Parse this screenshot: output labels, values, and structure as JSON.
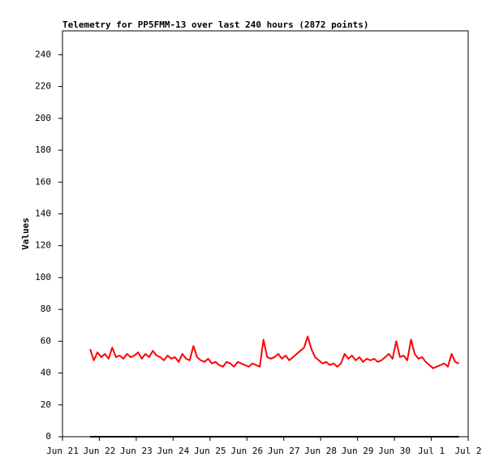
{
  "chart_data": {
    "type": "line",
    "title": "Telemetry for PP5FMM-13 over last 240 hours (2872 points)",
    "y_label": "Values",
    "xlim": [
      0,
      11
    ],
    "xticks": [
      {
        "value": 0,
        "label": "Jun 21"
      },
      {
        "value": 1,
        "label": "Jun 22"
      },
      {
        "value": 2,
        "label": "Jun 23"
      },
      {
        "value": 3,
        "label": "Jun 24"
      },
      {
        "value": 4,
        "label": "Jun 25"
      },
      {
        "value": 5,
        "label": "Jun 26"
      },
      {
        "value": 6,
        "label": "Jun 27"
      },
      {
        "value": 7,
        "label": "Jun 28"
      },
      {
        "value": 8,
        "label": "Jun 29"
      },
      {
        "value": 9,
        "label": "Jun 30"
      },
      {
        "value": 10,
        "label": "Jul 1"
      },
      {
        "value": 11,
        "label": "Jul 2"
      }
    ],
    "ylim": [
      0,
      255
    ],
    "yticks": [
      0,
      20,
      40,
      60,
      80,
      100,
      120,
      140,
      160,
      180,
      200,
      220,
      240
    ],
    "series": [
      {
        "color": "#ff0000",
        "x": [
          0.75,
          0.85,
          0.95,
          1.05,
          1.15,
          1.25,
          1.35,
          1.45,
          1.55,
          1.65,
          1.75,
          1.85,
          1.95,
          2.05,
          2.15,
          2.25,
          2.35,
          2.45,
          2.55,
          2.65,
          2.75,
          2.85,
          2.95,
          3.05,
          3.15,
          3.25,
          3.35,
          3.45,
          3.55,
          3.65,
          3.75,
          3.85,
          3.95,
          4.05,
          4.15,
          4.25,
          4.35,
          4.45,
          4.55,
          4.65,
          4.75,
          4.85,
          4.95,
          5.05,
          5.15,
          5.25,
          5.35,
          5.45,
          5.55,
          5.65,
          5.75,
          5.85,
          5.95,
          6.05,
          6.15,
          6.25,
          6.35,
          6.45,
          6.55,
          6.65,
          6.75,
          6.85,
          6.95,
          7.05,
          7.15,
          7.25,
          7.35,
          7.45,
          7.55,
          7.65,
          7.75,
          7.85,
          7.95,
          8.05,
          8.15,
          8.25,
          8.35,
          8.45,
          8.55,
          8.65,
          8.75,
          8.85,
          8.95,
          9.05,
          9.15,
          9.25,
          9.35,
          9.45,
          9.55,
          9.65,
          9.75,
          9.85,
          9.95,
          10.05,
          10.15,
          10.25,
          10.35,
          10.45,
          10.55,
          10.65,
          10.75
        ],
        "values": [
          55,
          48,
          53,
          50,
          52,
          49,
          56,
          50,
          51,
          49,
          52,
          50,
          51,
          53,
          49,
          52,
          50,
          54,
          51,
          50,
          48,
          51,
          49,
          50,
          47,
          52,
          49,
          48,
          57,
          50,
          48,
          47,
          49,
          46,
          47,
          45,
          44,
          47,
          46,
          44,
          47,
          46,
          45,
          44,
          46,
          45,
          44,
          61,
          50,
          49,
          50,
          52,
          49,
          51,
          48,
          50,
          52,
          54,
          56,
          63,
          55,
          50,
          48,
          46,
          47,
          45,
          46,
          44,
          46,
          52,
          49,
          51,
          48,
          50,
          47,
          49,
          48,
          49,
          47,
          48,
          50,
          52,
          49,
          60,
          50,
          51,
          48,
          61,
          52,
          49,
          50,
          47,
          45,
          43,
          44,
          45,
          46,
          44,
          52,
          47,
          46
        ]
      },
      {
        "color": "#000000",
        "x": [
          0.75,
          10.75
        ],
        "values": [
          0,
          0
        ]
      }
    ]
  }
}
